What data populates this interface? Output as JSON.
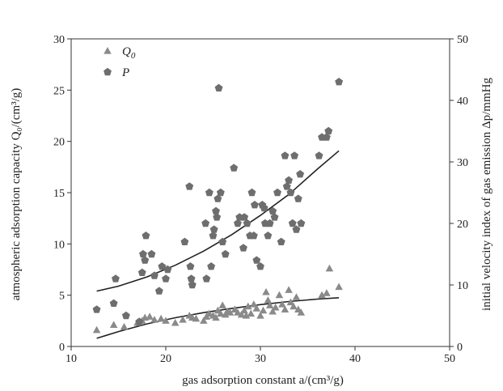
{
  "chart_data": {
    "type": "scatter",
    "xlabel": "gas adsorption constant a/(cm³/g)",
    "ylabel_left": "atmospheric adsorption capacity Q₀/(cm³/g)",
    "ylabel_right": "initial velocity index of gas emission Δp/mmHg",
    "xlim": [
      10,
      50
    ],
    "ylim_left": [
      0,
      30
    ],
    "ylim_right": [
      0,
      50
    ],
    "xticks": [
      "10",
      "20",
      "30",
      "40",
      "50"
    ],
    "yticks_left": [
      "0",
      "5",
      "10",
      "15",
      "20",
      "25",
      "30"
    ],
    "yticks_right": [
      "0",
      "10",
      "20",
      "30",
      "40",
      "50"
    ],
    "grid": false,
    "legend_position": "top-left",
    "series": [
      {
        "name": "Q0",
        "axis": "left",
        "marker": "triangle",
        "color": "#8a8a8a",
        "points": [
          [
            12.7,
            1.6
          ],
          [
            14.5,
            2.1
          ],
          [
            15.6,
            1.9
          ],
          [
            17.0,
            2.3
          ],
          [
            17.5,
            2.5
          ],
          [
            17.8,
            2.8
          ],
          [
            18.3,
            2.9
          ],
          [
            18.8,
            2.6
          ],
          [
            19.5,
            2.7
          ],
          [
            20.0,
            2.5
          ],
          [
            21.0,
            2.3
          ],
          [
            21.8,
            2.6
          ],
          [
            22.5,
            3.0
          ],
          [
            22.8,
            2.8
          ],
          [
            23.2,
            2.7
          ],
          [
            24.0,
            2.5
          ],
          [
            24.3,
            2.9
          ],
          [
            24.6,
            3.2
          ],
          [
            25.0,
            3.0
          ],
          [
            25.3,
            2.8
          ],
          [
            25.5,
            3.5
          ],
          [
            25.8,
            3.2
          ],
          [
            26.0,
            4.0
          ],
          [
            26.3,
            3.1
          ],
          [
            26.8,
            3.3
          ],
          [
            27.3,
            3.6
          ],
          [
            27.6,
            3.3
          ],
          [
            28.0,
            3.1
          ],
          [
            28.3,
            3.5
          ],
          [
            28.7,
            3.9
          ],
          [
            29.0,
            3.2
          ],
          [
            29.3,
            4.1
          ],
          [
            29.6,
            3.7
          ],
          [
            30.0,
            3.0
          ],
          [
            30.3,
            3.5
          ],
          [
            30.6,
            5.3
          ],
          [
            30.8,
            4.5
          ],
          [
            31.0,
            4.0
          ],
          [
            31.3,
            3.4
          ],
          [
            31.6,
            3.8
          ],
          [
            32.0,
            5.0
          ],
          [
            32.3,
            4.1
          ],
          [
            32.6,
            3.6
          ],
          [
            33.0,
            5.5
          ],
          [
            33.2,
            4.3
          ],
          [
            33.5,
            3.9
          ],
          [
            33.8,
            4.8
          ],
          [
            34.0,
            3.6
          ],
          [
            34.3,
            3.3
          ],
          [
            36.5,
            5.0
          ],
          [
            37.0,
            5.2
          ],
          [
            37.3,
            7.6
          ],
          [
            38.3,
            5.8
          ],
          [
            28.5,
            3.0
          ],
          [
            26.5,
            3.4
          ]
        ]
      },
      {
        "name": "P",
        "axis": "right",
        "marker": "pentagon",
        "color": "#6e6e6e",
        "points": [
          [
            12.7,
            6.0
          ],
          [
            14.5,
            7.0
          ],
          [
            14.7,
            11.0
          ],
          [
            15.8,
            5.0
          ],
          [
            17.2,
            4.0
          ],
          [
            17.5,
            12.0
          ],
          [
            17.6,
            15.0
          ],
          [
            17.8,
            14.0
          ],
          [
            17.9,
            18.0
          ],
          [
            18.5,
            15.0
          ],
          [
            18.8,
            11.5
          ],
          [
            19.3,
            9.0
          ],
          [
            19.6,
            13.0
          ],
          [
            20.0,
            11.0
          ],
          [
            20.2,
            12.5
          ],
          [
            22.0,
            17.0
          ],
          [
            22.5,
            26.0
          ],
          [
            22.6,
            13.0
          ],
          [
            22.7,
            11.0
          ],
          [
            22.8,
            10.0
          ],
          [
            24.2,
            20.0
          ],
          [
            24.3,
            11.0
          ],
          [
            24.6,
            25.0
          ],
          [
            24.8,
            13.0
          ],
          [
            25.0,
            18.0
          ],
          [
            25.1,
            19.0
          ],
          [
            25.3,
            22.0
          ],
          [
            25.4,
            21.0
          ],
          [
            25.5,
            24.0
          ],
          [
            25.6,
            42.0
          ],
          [
            25.8,
            25.0
          ],
          [
            26.0,
            17.0
          ],
          [
            26.3,
            15.0
          ],
          [
            27.2,
            29.0
          ],
          [
            27.6,
            20.0
          ],
          [
            27.8,
            21.0
          ],
          [
            28.2,
            16.0
          ],
          [
            28.3,
            21.0
          ],
          [
            28.6,
            20.0
          ],
          [
            28.9,
            18.0
          ],
          [
            29.1,
            25.0
          ],
          [
            29.3,
            18.0
          ],
          [
            29.4,
            23.0
          ],
          [
            29.6,
            14.0
          ],
          [
            30.0,
            13.0
          ],
          [
            30.2,
            23.0
          ],
          [
            30.5,
            20.0
          ],
          [
            30.8,
            18.0
          ],
          [
            31.0,
            20.0
          ],
          [
            31.3,
            22.0
          ],
          [
            31.5,
            21.0
          ],
          [
            31.8,
            25.0
          ],
          [
            32.2,
            17.0
          ],
          [
            32.6,
            31.0
          ],
          [
            32.8,
            26.0
          ],
          [
            33.0,
            27.0
          ],
          [
            33.2,
            25.0
          ],
          [
            33.4,
            20.0
          ],
          [
            33.6,
            31.0
          ],
          [
            33.8,
            19.0
          ],
          [
            34.0,
            24.0
          ],
          [
            34.2,
            28.0
          ],
          [
            34.3,
            20.0
          ],
          [
            36.2,
            31.0
          ],
          [
            36.5,
            34.0
          ],
          [
            37.0,
            34.0
          ],
          [
            37.2,
            35.0
          ],
          [
            38.3,
            43.0
          ],
          [
            30.4,
            22.5
          ]
        ]
      }
    ],
    "fit_lines": [
      {
        "series": "Q0",
        "axis": "left",
        "x": [
          12.7,
          15,
          18,
          21,
          24,
          27,
          30,
          33,
          36,
          38.3
        ],
        "y": [
          0.8,
          1.45,
          2.2,
          2.8,
          3.3,
          3.72,
          4.08,
          4.38,
          4.62,
          4.75
        ]
      },
      {
        "series": "P",
        "axis": "right",
        "x": [
          12.7,
          15,
          18,
          21,
          24,
          27,
          30,
          33,
          36,
          38.3
        ],
        "y": [
          9.0,
          9.8,
          11.3,
          13.2,
          15.5,
          18.2,
          21.3,
          24.7,
          28.8,
          31.8
        ]
      }
    ]
  }
}
